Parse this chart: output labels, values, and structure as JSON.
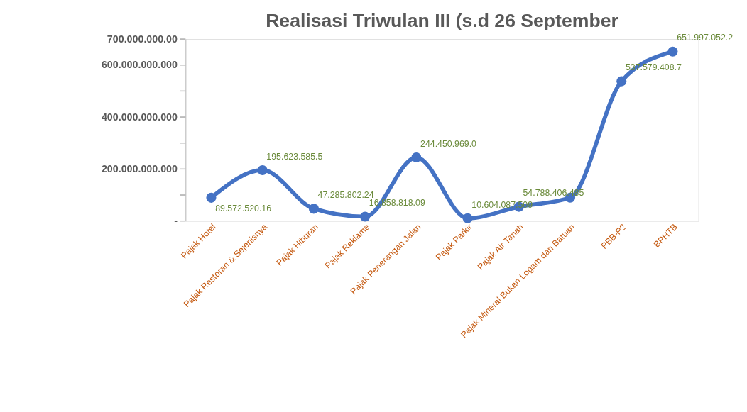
{
  "chart_data": {
    "type": "line",
    "title": "Realisasi Triwulan III (s.d 26 September",
    "categories": [
      "Pajak Hotel",
      "Pajak Restoran & Sejenisnya",
      "Pajak Hiburan",
      "Pajak Reklame",
      "Pajak Penerangan Jalan",
      "Pajak Parkir",
      "Pajak Air Tanah",
      "Pajak Mineral Bukan Logam dan Batuan",
      "PBB-P2",
      "BPHTB"
    ],
    "series": [
      {
        "color": "#4472c4",
        "values": [
          89572520160,
          195623585500,
          47285802240,
          16858818090,
          244450969000,
          10604087509,
          54788406485,
          90000000000,
          537579408700,
          651997052200
        ],
        "value_labels": [
          "89.572.520.16",
          "195.623.585.5",
          "47.285.802.24",
          "16.858.818.09",
          "244.450.969.0",
          "10.604.087.509",
          "54.788.406.485",
          null,
          "537.579.408.7",
          "651.997.052.2"
        ]
      }
    ],
    "ylim": [
      0,
      700000000000
    ],
    "yticks": [
      {
        "value": 0,
        "label": "-"
      },
      {
        "value": 100000000000,
        "label": null
      },
      {
        "value": 200000000000,
        "label": "200.000.000.000"
      },
      {
        "value": 300000000000,
        "label": null
      },
      {
        "value": 400000000000,
        "label": "400.000.000.000"
      },
      {
        "value": 500000000000,
        "label": null
      },
      {
        "value": 600000000000,
        "label": "600.000.000.000"
      },
      {
        "value": 700000000000,
        "label": "700.000.000.00"
      }
    ],
    "marker": "circle",
    "line_style": "solid",
    "grid": false
  }
}
